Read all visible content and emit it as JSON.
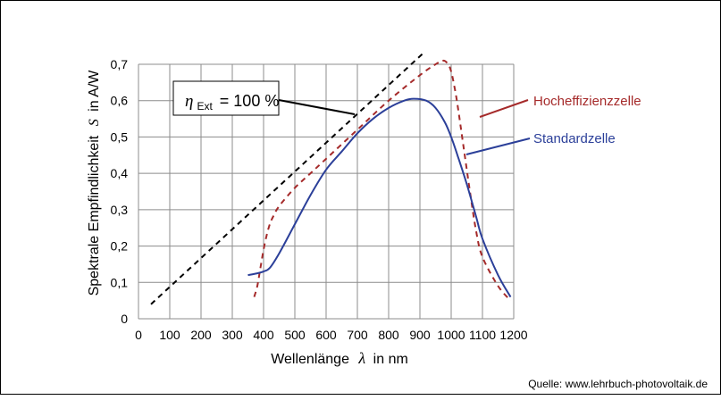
{
  "chart_data": {
    "type": "line",
    "xlabel_prefix": "Wellenlänge",
    "xlabel_symbol": "λ",
    "xlabel_suffix": "in nm",
    "ylabel_prefix": "Spektrale  Empfindlichkeit",
    "ylabel_symbol": "S",
    "ylabel_suffix": "in A/W",
    "xlim": [
      0,
      1200
    ],
    "ylim": [
      0,
      0.7
    ],
    "x_ticks": [
      0,
      100,
      200,
      300,
      400,
      500,
      600,
      700,
      800,
      900,
      1000,
      1100,
      1200
    ],
    "y_ticks": [
      0,
      0.1,
      0.2,
      0.3,
      0.4,
      0.5,
      0.6,
      0.7
    ],
    "y_tick_labels": [
      "0",
      "0,1",
      "0,2",
      "0,3",
      "0,4",
      "0,5",
      "0,6",
      "0,7"
    ],
    "grid": true,
    "series": [
      {
        "name": "Hocheffizienzzelle",
        "color": "#a52a2a",
        "dash": "dashed",
        "x": [
          370,
          380,
          390,
          400,
          410,
          420,
          430,
          450,
          500,
          550,
          600,
          700,
          800,
          900,
          950,
          975,
          990,
          1000,
          1010,
          1020,
          1040,
          1060,
          1080,
          1100,
          1150,
          1190
        ],
        "y": [
          0.06,
          0.09,
          0.14,
          0.19,
          0.23,
          0.26,
          0.28,
          0.31,
          0.36,
          0.4,
          0.44,
          0.52,
          0.6,
          0.67,
          0.7,
          0.71,
          0.7,
          0.68,
          0.64,
          0.59,
          0.47,
          0.35,
          0.24,
          0.17,
          0.09,
          0.05
        ]
      },
      {
        "name": "Standardzelle",
        "color": "#2b3f99",
        "dash": "solid",
        "x": [
          350,
          380,
          400,
          420,
          450,
          500,
          550,
          600,
          650,
          700,
          750,
          800,
          850,
          880,
          920,
          950,
          980,
          1000,
          1020,
          1050,
          1080,
          1100,
          1150,
          1190
        ],
        "y": [
          0.12,
          0.125,
          0.13,
          0.14,
          0.18,
          0.26,
          0.34,
          0.41,
          0.46,
          0.51,
          0.55,
          0.58,
          0.6,
          0.605,
          0.6,
          0.58,
          0.54,
          0.5,
          0.45,
          0.37,
          0.28,
          0.22,
          0.12,
          0.06
        ]
      },
      {
        "name": "",
        "color": "#000000",
        "dash": "dashed",
        "x": [
          40,
          910
        ],
        "y": [
          0.04,
          0.73
        ]
      }
    ],
    "eta_label": {
      "symbol": "η",
      "subscript": "Ext",
      "text": "= 100 %"
    }
  },
  "source_note": "Quelle: www.lehrbuch-photovoltaik.de"
}
